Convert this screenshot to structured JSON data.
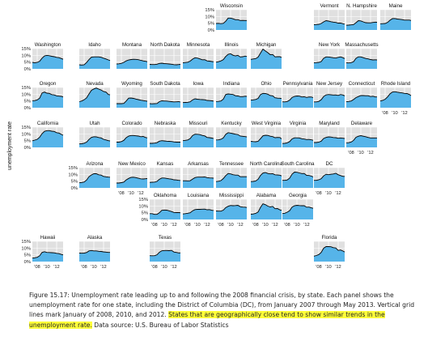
{
  "chart_data": {
    "type": "area",
    "title": "",
    "ylabel": "unemployment rate",
    "x_range": [
      "2007-01",
      "2013-05"
    ],
    "ylim": [
      0,
      15
    ],
    "y_ticks": [
      "0%",
      "5%",
      "10%",
      "15%"
    ],
    "x_ticks": [
      "'08",
      "'10",
      "'12"
    ],
    "gridlines": "vertical lines at January 2008, 2010, 2012; horizontal at 0%, 5%, 10%, 15%",
    "fill_color": "#56b4e9",
    "line_color": "#000000",
    "panel_background": "#e0e0e0",
    "x": [
      "2007-01",
      "2007-07",
      "2008-01",
      "2008-07",
      "2009-01",
      "2009-07",
      "2010-01",
      "2010-07",
      "2011-01",
      "2011-07",
      "2012-01",
      "2012-07",
      "2013-01",
      "2013-05"
    ],
    "series": [
      {
        "name": "Wisconsin",
        "values": [
          4.8,
          4.9,
          4.7,
          4.9,
          6.5,
          8.8,
          8.8,
          8.3,
          7.6,
          7.6,
          7.0,
          7.1,
          7.0,
          7.0
        ]
      },
      {
        "name": "Vermont",
        "values": [
          3.9,
          4.0,
          4.2,
          4.8,
          6.0,
          6.9,
          6.6,
          6.1,
          5.8,
          5.6,
          5.1,
          5.1,
          4.6,
          4.4
        ]
      },
      {
        "name": "N. Hampshire",
        "values": [
          3.5,
          3.6,
          3.8,
          4.0,
          5.4,
          6.9,
          6.7,
          6.0,
          5.4,
          5.3,
          5.3,
          5.6,
          5.8,
          5.7
        ]
      },
      {
        "name": "Maine",
        "values": [
          4.6,
          4.7,
          4.8,
          5.6,
          7.2,
          8.4,
          8.5,
          8.1,
          7.9,
          7.7,
          7.3,
          7.3,
          7.3,
          7.0
        ]
      },
      {
        "name": "Washington",
        "values": [
          4.8,
          4.5,
          4.8,
          5.6,
          7.9,
          9.6,
          10.0,
          9.7,
          9.3,
          9.0,
          8.5,
          8.3,
          7.6,
          7.1
        ]
      },
      {
        "name": "Idaho",
        "values": [
          3.0,
          2.8,
          3.0,
          4.7,
          6.9,
          8.7,
          8.9,
          8.9,
          8.9,
          8.6,
          7.9,
          7.3,
          6.6,
          6.2
        ]
      },
      {
        "name": "Montana",
        "values": [
          3.6,
          3.7,
          4.1,
          4.8,
          5.9,
          6.6,
          6.9,
          7.1,
          7.0,
          6.8,
          6.3,
          5.9,
          5.6,
          5.3
        ]
      },
      {
        "name": "North Dakota",
        "values": [
          3.3,
          3.2,
          3.2,
          3.4,
          4.0,
          4.2,
          3.9,
          3.8,
          3.6,
          3.4,
          3.1,
          3.0,
          3.2,
          3.3
        ]
      },
      {
        "name": "Minnesota",
        "values": [
          4.5,
          4.7,
          4.9,
          5.7,
          7.2,
          8.2,
          8.0,
          7.4,
          6.7,
          6.8,
          5.9,
          5.7,
          5.4,
          5.3
        ]
      },
      {
        "name": "Illinois",
        "values": [
          4.9,
          5.3,
          5.9,
          6.8,
          9.2,
          10.8,
          11.2,
          10.1,
          9.6,
          10.0,
          8.8,
          9.0,
          9.5,
          9.2
        ]
      },
      {
        "name": "Michigan",
        "values": [
          7.0,
          7.3,
          7.6,
          8.7,
          11.7,
          14.6,
          13.3,
          12.0,
          10.5,
          10.6,
          8.9,
          9.0,
          9.0,
          8.4
        ]
      },
      {
        "name": "New York",
        "values": [
          4.5,
          4.6,
          4.8,
          5.4,
          7.8,
          8.8,
          8.8,
          8.5,
          8.2,
          8.0,
          8.5,
          8.9,
          8.2,
          7.6
        ]
      },
      {
        "name": "Massachusetts",
        "values": [
          4.5,
          4.4,
          4.6,
          5.3,
          7.8,
          8.9,
          8.9,
          8.3,
          7.7,
          7.4,
          6.9,
          6.6,
          6.7,
          6.6
        ]
      },
      {
        "name": "Oregon",
        "values": [
          5.2,
          5.3,
          5.8,
          7.1,
          10.9,
          11.6,
          10.8,
          10.6,
          9.7,
          9.5,
          8.8,
          8.6,
          8.4,
          8.0
        ]
      },
      {
        "name": "Nevada",
        "values": [
          4.5,
          5.0,
          5.9,
          7.3,
          10.2,
          12.9,
          13.9,
          14.6,
          13.8,
          13.1,
          12.0,
          11.6,
          9.8,
          9.6
        ]
      },
      {
        "name": "Wyoming",
        "values": [
          3.0,
          3.0,
          3.0,
          3.2,
          5.0,
          7.1,
          7.2,
          6.9,
          6.4,
          6.0,
          5.6,
          5.3,
          5.0,
          4.8
        ]
      },
      {
        "name": "South Dakota",
        "values": [
          3.0,
          2.9,
          3.0,
          3.1,
          4.5,
          5.1,
          5.0,
          4.9,
          4.7,
          4.5,
          4.3,
          4.4,
          4.5,
          4.2
        ]
      },
      {
        "name": "Iowa",
        "values": [
          3.8,
          3.9,
          4.0,
          4.4,
          5.8,
          6.6,
          6.3,
          6.1,
          6.0,
          5.9,
          5.4,
          5.3,
          5.1,
          4.9
        ]
      },
      {
        "name": "Indiana",
        "values": [
          4.6,
          4.7,
          5.0,
          6.3,
          9.8,
          10.2,
          10.0,
          9.8,
          8.9,
          8.7,
          8.2,
          8.2,
          8.5,
          8.4
        ]
      },
      {
        "name": "Ohio",
        "values": [
          5.6,
          5.8,
          6.1,
          6.9,
          9.8,
          10.6,
          10.5,
          10.0,
          9.0,
          8.8,
          7.4,
          7.1,
          7.0,
          6.8
        ]
      },
      {
        "name": "Pennsylvania",
        "values": [
          4.4,
          4.3,
          4.6,
          5.6,
          7.6,
          8.4,
          8.7,
          8.6,
          8.0,
          8.1,
          7.6,
          8.0,
          7.9,
          7.5
        ]
      },
      {
        "name": "New Jersey",
        "values": [
          4.3,
          4.3,
          4.7,
          5.9,
          8.3,
          9.5,
          9.8,
          9.6,
          9.4,
          9.5,
          9.1,
          9.8,
          9.4,
          8.8
        ]
      },
      {
        "name": "Connecticut",
        "values": [
          4.5,
          4.6,
          5.0,
          6.1,
          7.5,
          8.3,
          9.0,
          9.0,
          8.9,
          8.9,
          8.3,
          8.5,
          8.0,
          8.0
        ]
      },
      {
        "name": "Rhode Island",
        "values": [
          5.0,
          5.4,
          6.3,
          8.0,
          10.3,
          11.6,
          11.9,
          11.5,
          11.2,
          11.0,
          10.6,
          10.5,
          9.8,
          9.0
        ]
      },
      {
        "name": "California",
        "values": [
          4.9,
          5.4,
          6.0,
          7.5,
          10.2,
          11.9,
          12.4,
          12.4,
          12.0,
          11.8,
          10.9,
          10.6,
          9.6,
          9.0
        ]
      },
      {
        "name": "Utah",
        "values": [
          2.6,
          2.7,
          3.1,
          3.9,
          5.9,
          7.4,
          7.9,
          7.8,
          7.3,
          7.0,
          6.0,
          5.5,
          5.0,
          4.8
        ]
      },
      {
        "name": "Colorado",
        "values": [
          3.9,
          3.9,
          4.3,
          5.2,
          7.2,
          8.4,
          8.8,
          8.8,
          8.6,
          8.4,
          7.9,
          8.1,
          7.3,
          7.1
        ]
      },
      {
        "name": "Nebraska",
        "values": [
          3.0,
          3.0,
          3.2,
          3.5,
          4.6,
          5.0,
          4.8,
          4.6,
          4.5,
          4.4,
          4.1,
          3.9,
          3.9,
          3.9
        ]
      },
      {
        "name": "Missouri",
        "values": [
          5.0,
          5.2,
          5.5,
          6.5,
          8.8,
          9.8,
          9.7,
          9.5,
          8.9,
          8.5,
          7.4,
          7.2,
          6.9,
          6.6
        ]
      },
      {
        "name": "Kentucky",
        "values": [
          5.5,
          5.6,
          6.0,
          7.0,
          9.7,
          10.9,
          10.6,
          10.2,
          9.8,
          9.5,
          8.4,
          8.2,
          8.0,
          7.8
        ]
      },
      {
        "name": "West Virginia",
        "values": [
          4.5,
          4.3,
          4.2,
          4.5,
          6.5,
          8.6,
          9.0,
          8.9,
          8.3,
          8.0,
          7.2,
          7.4,
          7.3,
          6.3
        ]
      },
      {
        "name": "Virginia",
        "values": [
          2.9,
          3.0,
          3.4,
          4.3,
          6.3,
          7.1,
          7.1,
          7.0,
          6.4,
          6.2,
          5.8,
          5.9,
          5.6,
          5.3
        ]
      },
      {
        "name": "Maryland",
        "values": [
          3.6,
          3.6,
          3.9,
          4.6,
          6.6,
          7.4,
          7.8,
          7.7,
          7.3,
          7.2,
          6.8,
          7.0,
          6.8,
          6.6
        ]
      },
      {
        "name": "Delaware",
        "values": [
          3.4,
          3.5,
          4.0,
          5.2,
          7.5,
          8.3,
          8.7,
          8.3,
          7.9,
          7.4,
          7.0,
          7.0,
          7.0,
          7.0
        ]
      },
      {
        "name": "Arizona",
        "values": [
          3.8,
          4.0,
          4.4,
          5.8,
          8.3,
          9.6,
          10.5,
          10.5,
          9.7,
          9.5,
          8.5,
          8.2,
          8.0,
          7.9
        ]
      },
      {
        "name": "New Mexico",
        "values": [
          3.6,
          3.6,
          3.9,
          4.3,
          5.9,
          7.0,
          7.8,
          7.9,
          7.6,
          7.2,
          6.7,
          6.6,
          6.8,
          6.9
        ]
      },
      {
        "name": "Kansas",
        "values": [
          4.1,
          4.2,
          4.3,
          4.8,
          6.4,
          7.3,
          7.3,
          7.0,
          6.7,
          6.5,
          6.0,
          5.9,
          5.6,
          5.5
        ]
      },
      {
        "name": "Arkansas",
        "values": [
          5.3,
          5.3,
          5.2,
          5.3,
          6.5,
          7.6,
          8.0,
          8.0,
          8.0,
          8.1,
          7.6,
          7.4,
          7.3,
          7.2
        ]
      },
      {
        "name": "Tennessee",
        "values": [
          4.7,
          4.9,
          5.4,
          6.9,
          9.1,
          10.7,
          10.4,
          9.8,
          9.5,
          9.5,
          8.3,
          8.3,
          8.3,
          8.3
        ]
      },
      {
        "name": "North Carolina",
        "values": [
          4.7,
          4.8,
          5.1,
          6.4,
          9.3,
          11.0,
          11.4,
          10.7,
          10.4,
          10.5,
          9.7,
          9.6,
          9.4,
          8.9
        ]
      },
      {
        "name": "South Carolina",
        "values": [
          5.6,
          5.6,
          5.9,
          7.2,
          10.2,
          11.7,
          11.6,
          11.1,
          10.6,
          10.7,
          9.3,
          9.2,
          8.7,
          8.1
        ]
      },
      {
        "name": "DC",
        "values": [
          5.6,
          5.6,
          6.0,
          6.8,
          8.9,
          10.1,
          9.8,
          10.1,
          10.3,
          10.8,
          9.8,
          9.1,
          8.5,
          8.5
        ]
      },
      {
        "name": "Oklahoma",
        "values": [
          4.3,
          4.3,
          3.8,
          3.8,
          5.0,
          6.8,
          7.0,
          6.9,
          6.4,
          5.9,
          5.2,
          5.1,
          5.1,
          5.0
        ]
      },
      {
        "name": "Louisiana",
        "values": [
          4.1,
          4.3,
          4.6,
          5.0,
          6.4,
          7.3,
          7.5,
          7.5,
          7.6,
          7.7,
          7.2,
          7.3,
          6.8,
          6.7
        ]
      },
      {
        "name": "Mississippi",
        "values": [
          6.3,
          6.2,
          6.2,
          6.9,
          8.8,
          9.8,
          10.4,
          10.2,
          10.3,
          10.5,
          9.5,
          9.2,
          9.1,
          8.9
        ]
      },
      {
        "name": "Alabama",
        "values": [
          3.9,
          4.1,
          4.5,
          5.5,
          9.0,
          11.6,
          11.0,
          9.9,
          9.3,
          9.7,
          8.0,
          8.1,
          7.1,
          6.9
        ]
      },
      {
        "name": "Georgia",
        "values": [
          4.4,
          4.6,
          5.4,
          6.5,
          9.2,
          10.2,
          10.5,
          10.3,
          10.2,
          10.2,
          9.1,
          9.2,
          8.6,
          8.3
        ]
      },
      {
        "name": "Hawaii",
        "values": [
          2.6,
          2.8,
          3.2,
          4.3,
          6.8,
          7.3,
          6.8,
          6.7,
          6.6,
          6.5,
          6.1,
          5.9,
          5.3,
          5.0
        ]
      },
      {
        "name": "Alaska",
        "values": [
          6.3,
          6.2,
          6.3,
          6.7,
          7.9,
          8.2,
          7.9,
          7.9,
          7.6,
          7.5,
          7.2,
          7.0,
          6.8,
          6.8
        ]
      },
      {
        "name": "Texas",
        "values": [
          4.4,
          4.3,
          4.4,
          5.0,
          6.9,
          8.0,
          8.2,
          8.2,
          8.1,
          8.3,
          7.1,
          6.8,
          6.4,
          6.5
        ]
      },
      {
        "name": "Florida",
        "values": [
          4.0,
          4.5,
          5.2,
          6.8,
          9.9,
          11.1,
          11.1,
          11.0,
          10.3,
          10.1,
          8.3,
          8.6,
          7.8,
          7.1
        ]
      }
    ]
  },
  "caption": {
    "text_before": "Figure 15.17: Unemployment rate leading up to and following the 2008 financial crisis, by state. Each panel shows the unemployment rate for one state, including the District of Columbia (DC), from January 2007 through May 2013. Vertical grid lines mark January of 2008, 2010, and 2012. ",
    "highlight": "States that are geographically close tend to show similar trends in the unemployment rate.",
    "text_after": " Data source: U.S. Bureau of Labor Statistics"
  }
}
